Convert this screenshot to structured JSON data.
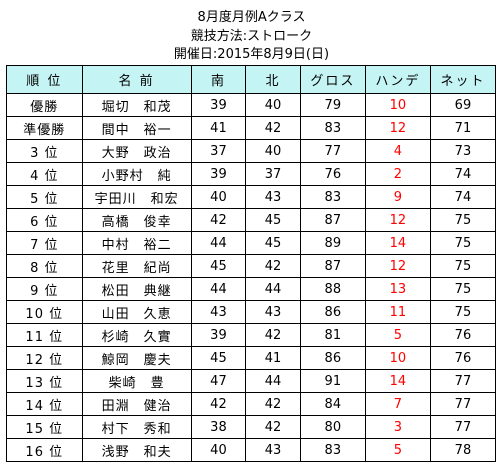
{
  "header": {
    "title": "8月度月例Aクラス",
    "format": "競技方法:ストローク",
    "date": "開催日:2015年8月9日(日)"
  },
  "table": {
    "columns": [
      "順 位",
      "名 前",
      "南",
      "北",
      "グロス",
      "ハンデ",
      "ネット"
    ],
    "rows": [
      {
        "rank": "優勝",
        "name": "堀切　和茂",
        "south": "39",
        "north": "40",
        "gross": "79",
        "handicap": "10",
        "net": "69"
      },
      {
        "rank": "準優勝",
        "name": "間中　裕一",
        "south": "41",
        "north": "42",
        "gross": "83",
        "handicap": "12",
        "net": "71"
      },
      {
        "rank": "3 位",
        "name": "大野　政治",
        "south": "37",
        "north": "40",
        "gross": "77",
        "handicap": "4",
        "net": "73"
      },
      {
        "rank": "4 位",
        "name": "小野村　純",
        "south": "39",
        "north": "37",
        "gross": "76",
        "handicap": "2",
        "net": "74"
      },
      {
        "rank": "5 位",
        "name": "宇田川　和宏",
        "south": "40",
        "north": "43",
        "gross": "83",
        "handicap": "9",
        "net": "74"
      },
      {
        "rank": "6 位",
        "name": "高橋　俊幸",
        "south": "42",
        "north": "45",
        "gross": "87",
        "handicap": "12",
        "net": "75"
      },
      {
        "rank": "7 位",
        "name": "中村　裕二",
        "south": "44",
        "north": "45",
        "gross": "89",
        "handicap": "14",
        "net": "75"
      },
      {
        "rank": "8 位",
        "name": "花里　紀尚",
        "south": "45",
        "north": "42",
        "gross": "87",
        "handicap": "12",
        "net": "75"
      },
      {
        "rank": "9 位",
        "name": "松田　典継",
        "south": "44",
        "north": "44",
        "gross": "88",
        "handicap": "13",
        "net": "75"
      },
      {
        "rank": "10 位",
        "name": "山田　久恵",
        "south": "43",
        "north": "43",
        "gross": "86",
        "handicap": "11",
        "net": "75"
      },
      {
        "rank": "11 位",
        "name": "杉崎　久實",
        "south": "39",
        "north": "42",
        "gross": "81",
        "handicap": "5",
        "net": "76"
      },
      {
        "rank": "12 位",
        "name": "鯨岡　慶夫",
        "south": "45",
        "north": "41",
        "gross": "86",
        "handicap": "10",
        "net": "76"
      },
      {
        "rank": "13 位",
        "name": "柴崎　豊",
        "south": "47",
        "north": "44",
        "gross": "91",
        "handicap": "14",
        "net": "77"
      },
      {
        "rank": "14 位",
        "name": "田淵　健治",
        "south": "42",
        "north": "42",
        "gross": "84",
        "handicap": "7",
        "net": "77"
      },
      {
        "rank": "15 位",
        "name": "村下　秀和",
        "south": "38",
        "north": "42",
        "gross": "80",
        "handicap": "3",
        "net": "77"
      },
      {
        "rank": "16 位",
        "name": "浅野　和夫",
        "south": "40",
        "north": "43",
        "gross": "83",
        "handicap": "5",
        "net": "78"
      }
    ]
  },
  "colors": {
    "header_background": "#c5f4f4",
    "handicap_text": "#ff0000",
    "border": "#000000"
  }
}
